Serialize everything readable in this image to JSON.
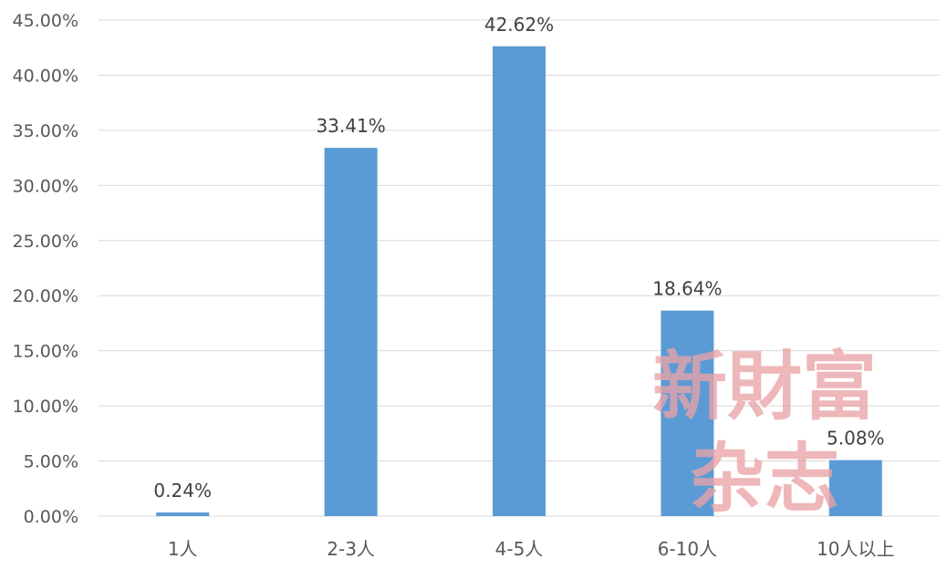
{
  "chart_data": {
    "type": "bar",
    "categories": [
      "1人",
      "2-3人",
      "4-5人",
      "6-10人",
      "10人以上"
    ],
    "values": [
      0.24,
      33.41,
      42.62,
      18.64,
      5.08
    ],
    "data_labels": [
      "0.24%",
      "33.41%",
      "42.62%",
      "18.64%",
      "5.08%"
    ],
    "y_ticks": [
      0,
      5,
      10,
      15,
      20,
      25,
      30,
      35,
      40,
      45
    ],
    "y_tick_labels": [
      "0.00%",
      "5.00%",
      "10.00%",
      "15.00%",
      "20.00%",
      "25.00%",
      "30.00%",
      "35.00%",
      "40.00%",
      "45.00%"
    ],
    "ylim": [
      0,
      45
    ],
    "grid": true,
    "bar_color": "#5b9bd5",
    "title": "",
    "xlabel": "",
    "ylabel": ""
  },
  "watermark": {
    "line1": "新財富",
    "line2": "杂志",
    "color": "#e9a3a6"
  }
}
